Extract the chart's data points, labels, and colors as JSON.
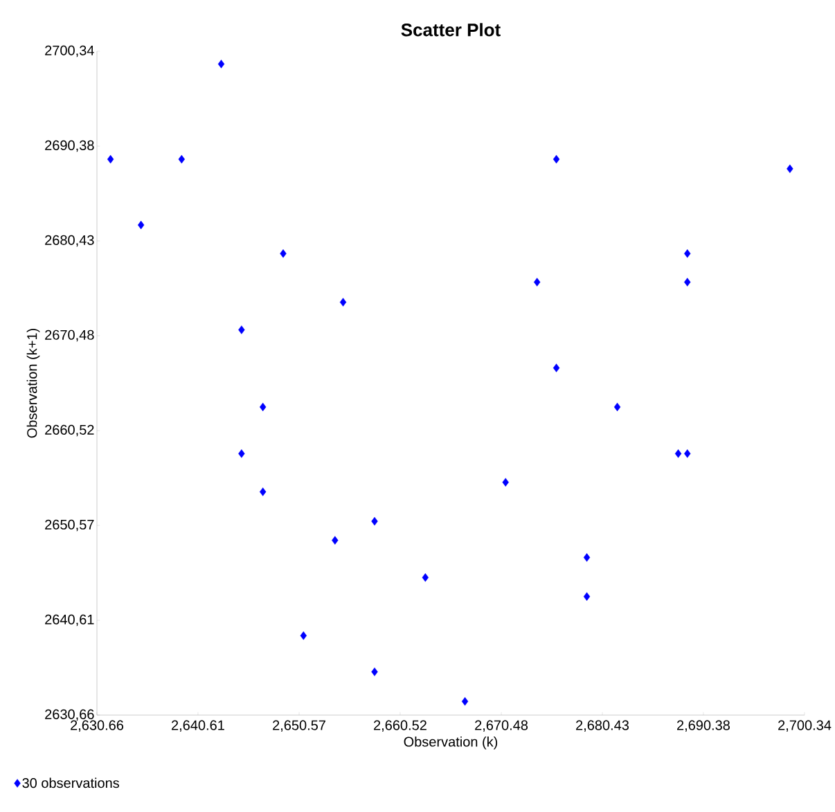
{
  "chart_data": {
    "type": "scatter",
    "title": "Scatter Plot",
    "xlabel": "Observation (k)",
    "ylabel": "Observation (k+1)",
    "xlim": [
      2630.66,
      2700.34
    ],
    "ylim": [
      2630.66,
      2700.34
    ],
    "xticks": [
      {
        "value": 2630.66,
        "label": "2,630.66"
      },
      {
        "value": 2640.61,
        "label": "2,640.61"
      },
      {
        "value": 2650.57,
        "label": "2,650.57"
      },
      {
        "value": 2660.52,
        "label": "2,660.52"
      },
      {
        "value": 2670.48,
        "label": "2,670.48"
      },
      {
        "value": 2680.43,
        "label": "2,680.43"
      },
      {
        "value": 2690.38,
        "label": "2,690.38"
      },
      {
        "value": 2700.34,
        "label": "2,700.34"
      }
    ],
    "yticks": [
      {
        "value": 2630.66,
        "label": "2630,66"
      },
      {
        "value": 2640.61,
        "label": "2640,61"
      },
      {
        "value": 2650.57,
        "label": "2650,57"
      },
      {
        "value": 2660.52,
        "label": "2660,52"
      },
      {
        "value": 2670.48,
        "label": "2670,48"
      },
      {
        "value": 2680.43,
        "label": "2680,43"
      },
      {
        "value": 2690.38,
        "label": "2690,38"
      },
      {
        "value": 2700.34,
        "label": "2700,34"
      }
    ],
    "grid": false,
    "legend": "bottom left",
    "marker": "diamond",
    "series": [
      {
        "name": "30 observations",
        "color": "#0000ff",
        "x": [
          2632.0,
          2635.0,
          2639.0,
          2642.9,
          2644.9,
          2644.9,
          2647.0,
          2647.0,
          2649.0,
          2651.0,
          2654.1,
          2654.9,
          2658.0,
          2658.0,
          2663.0,
          2666.9,
          2670.9,
          2674.0,
          2675.9,
          2675.9,
          2678.9,
          2678.9,
          2681.9,
          2687.9,
          2688.8,
          2688.8,
          2688.8,
          2698.9
        ],
        "values": [
          2689.0,
          2682.1,
          2689.0,
          2699.0,
          2671.1,
          2658.1,
          2663.0,
          2654.1,
          2679.1,
          2639.0,
          2649.0,
          2674.0,
          2651.0,
          2635.2,
          2645.1,
          2632.1,
          2655.1,
          2676.1,
          2689.0,
          2667.1,
          2647.2,
          2643.1,
          2663.0,
          2658.1,
          2679.1,
          2676.1,
          2658.1,
          2688.0
        ]
      }
    ]
  }
}
